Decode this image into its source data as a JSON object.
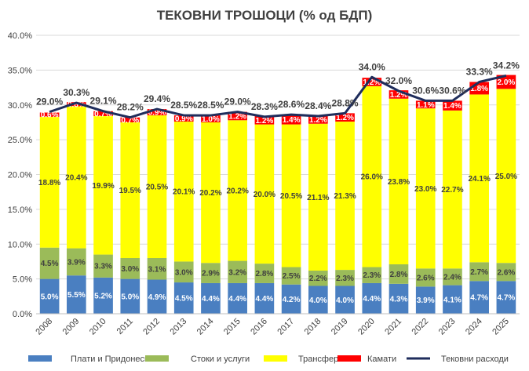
{
  "chart_data": {
    "type": "bar",
    "stacked": true,
    "title": "ТЕКОВНИ ТРОШОЦИ (% од БДП)",
    "categories": [
      "2008",
      "2009",
      "2010",
      "2011",
      "2012",
      "2013",
      "2014",
      "2015",
      "2016",
      "2017",
      "2018",
      "2019",
      "2020",
      "2021",
      "2022",
      "2023",
      "2024",
      "2025"
    ],
    "ylim": [
      0,
      40
    ],
    "yticks": [
      "0.0%",
      "5.0%",
      "10.0%",
      "15.0%",
      "20.0%",
      "25.0%",
      "30.0%",
      "35.0%",
      "40.0%"
    ],
    "series": [
      {
        "name": "Плати и Придонеси",
        "color": "#4a7fc1",
        "values": [
          5.0,
          5.5,
          5.2,
          5.0,
          4.9,
          4.5,
          4.4,
          4.4,
          4.4,
          4.2,
          4.0,
          4.0,
          4.4,
          4.3,
          3.9,
          4.1,
          4.7,
          4.7
        ],
        "labels": [
          "5.0%",
          "5.5%",
          "5.2%",
          "5.0%",
          "4.9%",
          "4.5%",
          "4.4%",
          "4.4%",
          "4.4%",
          "4.2%",
          "4.0%",
          "4.0%",
          "4.4%",
          "4.3%",
          "3.9%",
          "4.1%",
          "4.7%",
          "4.7%"
        ]
      },
      {
        "name": "Стоки и услуги",
        "color": "#9bbb59",
        "values": [
          4.5,
          3.9,
          3.3,
          3.0,
          3.1,
          3.0,
          2.9,
          3.2,
          2.8,
          2.5,
          2.2,
          2.3,
          2.3,
          2.8,
          2.6,
          2.4,
          2.7,
          2.6
        ],
        "labels": [
          "4.5%",
          "3.9%",
          "3.3%",
          "3.0%",
          "3.1%",
          "3.0%",
          "2.9%",
          "3.2%",
          "2.8%",
          "2.5%",
          "2.2%",
          "2.3%",
          "2.3%",
          "2.8%",
          "2.6%",
          "2.4%",
          "2.7%",
          "2.6%"
        ]
      },
      {
        "name": "Трансфери",
        "color": "#ffff00",
        "values": [
          18.8,
          20.4,
          19.9,
          19.5,
          20.5,
          20.1,
          20.2,
          20.2,
          20.0,
          20.5,
          21.1,
          21.3,
          26.0,
          23.8,
          23.0,
          22.7,
          24.1,
          25.0
        ],
        "labels": [
          "18.8%",
          "20.4%",
          "19.9%",
          "19.5%",
          "20.5%",
          "20.1%",
          "20.2%",
          "20.2%",
          "20.0%",
          "20.5%",
          "21.1%",
          "21.3%",
          "26.0%",
          "23.8%",
          "23.0%",
          "22.7%",
          "24.1%",
          "25.0%"
        ]
      },
      {
        "name": "Камати",
        "color": "#ff0000",
        "values": [
          0.6,
          0.6,
          0.7,
          0.7,
          0.9,
          0.9,
          1.0,
          1.2,
          1.2,
          1.4,
          1.2,
          1.2,
          1.2,
          1.2,
          1.1,
          1.4,
          1.8,
          2.0
        ],
        "labels": [
          "0.6%",
          "0.6%",
          "0.7%",
          "0.7%",
          "0.9%",
          "0.9%",
          "1.0%",
          "1.2%",
          "1.2%",
          "1.4%",
          "1.2%",
          "1.2%",
          "1.2%",
          "1.2%",
          "1.1%",
          "1.4%",
          "1.8%",
          "2.0%"
        ]
      }
    ],
    "line": {
      "name": "Тековни расходи",
      "color": "#1f2d5c",
      "values": [
        29.0,
        30.3,
        29.1,
        28.2,
        29.4,
        28.5,
        28.5,
        29.0,
        28.3,
        28.6,
        28.4,
        28.8,
        34.0,
        32.0,
        30.6,
        30.6,
        33.3,
        34.2
      ],
      "labels": [
        "29.0%",
        "30.3%",
        "29.1%",
        "28.2%",
        "29.4%",
        "28.5%",
        "28.5%",
        "29.0%",
        "28.3%",
        "28.6%",
        "28.4%",
        "28.8%",
        "34.0%",
        "32.0%",
        "30.6%",
        "30.6%",
        "33.3%",
        "34.2%"
      ]
    },
    "legend_position": "bottom"
  }
}
